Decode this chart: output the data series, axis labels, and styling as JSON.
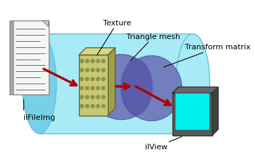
{
  "bg_color": "#ffffff",
  "cylinder_color": "#a8eaf5",
  "cylinder_edge_color": "#60c0d8",
  "sphere_color": "#6868b0",
  "sphere_alpha": 0.82,
  "texture_face_color": "#c8c870",
  "texture_top_color": "#d8d888",
  "texture_right_color": "#a0a048",
  "texture_dot_color": "#909050",
  "monitor_frame_color": "#585858",
  "monitor_frame_dark": "#303030",
  "monitor_screen_color": "#00efef",
  "arrow_color": "#aa0000",
  "doc_color": "#f5f5f5",
  "doc_line_color": "#666666",
  "doc_spine_color": "#aaaaaa",
  "label_fontsize": 8,
  "labels": {
    "texture": "Texture",
    "triangle_mesh": "Triangle mesh",
    "transform_matrix": "Transform matrix",
    "ilfileimg": "ilFileImg",
    "ilview": "ilView"
  }
}
